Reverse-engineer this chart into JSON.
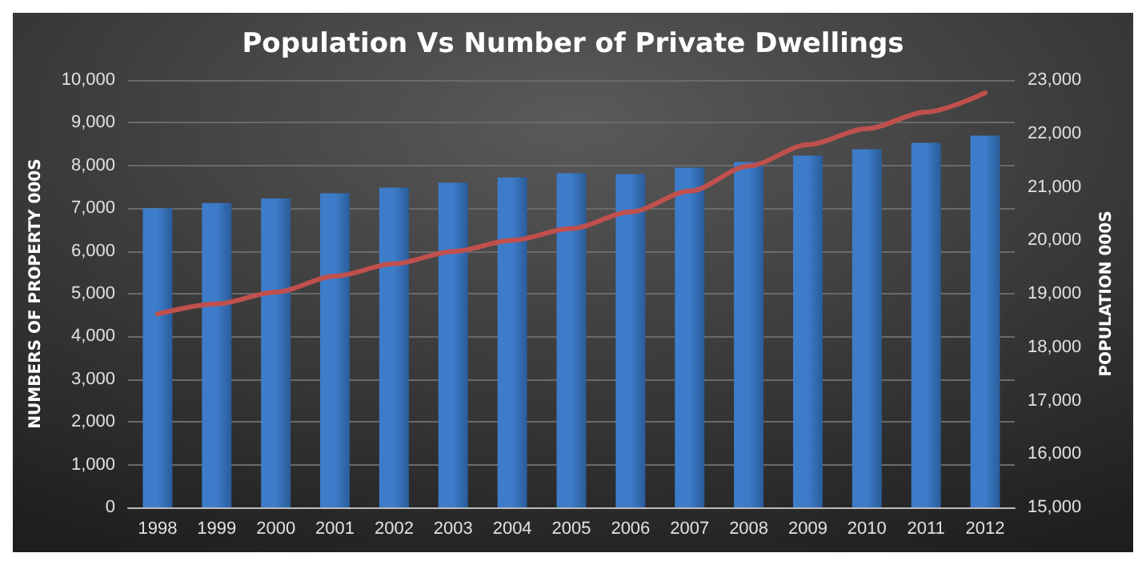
{
  "chart_data": {
    "type": "bar",
    "title": "Population Vs Number of Private Dwellings",
    "ylabel": "NUMBERS OF PROPERTY 000S",
    "y2label": "POPULATION 000S",
    "categories": [
      "1998",
      "1999",
      "2000",
      "2001",
      "2002",
      "2003",
      "2004",
      "2005",
      "2006",
      "2007",
      "2008",
      "2009",
      "2010",
      "2011",
      "2012"
    ],
    "series": [
      {
        "color": "#3d7cc9",
        "values": [
          7000,
          7120,
          7230,
          7350,
          7480,
          7600,
          7720,
          7820,
          7800,
          7950,
          8080,
          8230,
          8380,
          8530,
          8700
        ]
      },
      {
        "type": "line",
        "axis": "y2",
        "color": "#c0504d",
        "marker": "none",
        "line_style": "solid",
        "values": [
          18620,
          18810,
          19030,
          19330,
          19560,
          19790,
          20000,
          20220,
          20530,
          20920,
          21390,
          21790,
          22090,
          22400,
          22760
        ]
      }
    ],
    "ylim": [
      0,
      10000
    ],
    "yticks": [
      0,
      {
        "value": 1000,
        "label": "1,000"
      },
      {
        "value": 2000,
        "label": "2,000"
      },
      {
        "value": 3000,
        "label": "3,000"
      },
      {
        "value": 4000,
        "label": "4,000"
      },
      {
        "value": 5000,
        "label": "5,000"
      },
      {
        "value": 6000,
        "label": "6,000"
      },
      {
        "value": 7000,
        "label": "7,000"
      },
      {
        "value": 8000,
        "label": "8,000"
      },
      {
        "value": 9000,
        "label": "9,000"
      },
      {
        "value": 10000,
        "label": "10,000"
      }
    ],
    "y2lim": [
      15000,
      23000
    ],
    "y2ticks": [
      {
        "value": 15000,
        "label": "15,000"
      },
      {
        "value": 16000,
        "label": "16,000"
      },
      {
        "value": 17000,
        "label": "17,000"
      },
      {
        "value": 18000,
        "label": "18,000"
      },
      {
        "value": 19000,
        "label": "19,000"
      },
      {
        "value": 20000,
        "label": "20,000"
      },
      {
        "value": 21000,
        "label": "21,000"
      },
      {
        "value": 22000,
        "label": "22,000"
      },
      {
        "value": 23000,
        "label": "23,000"
      }
    ],
    "grid": "y"
  }
}
